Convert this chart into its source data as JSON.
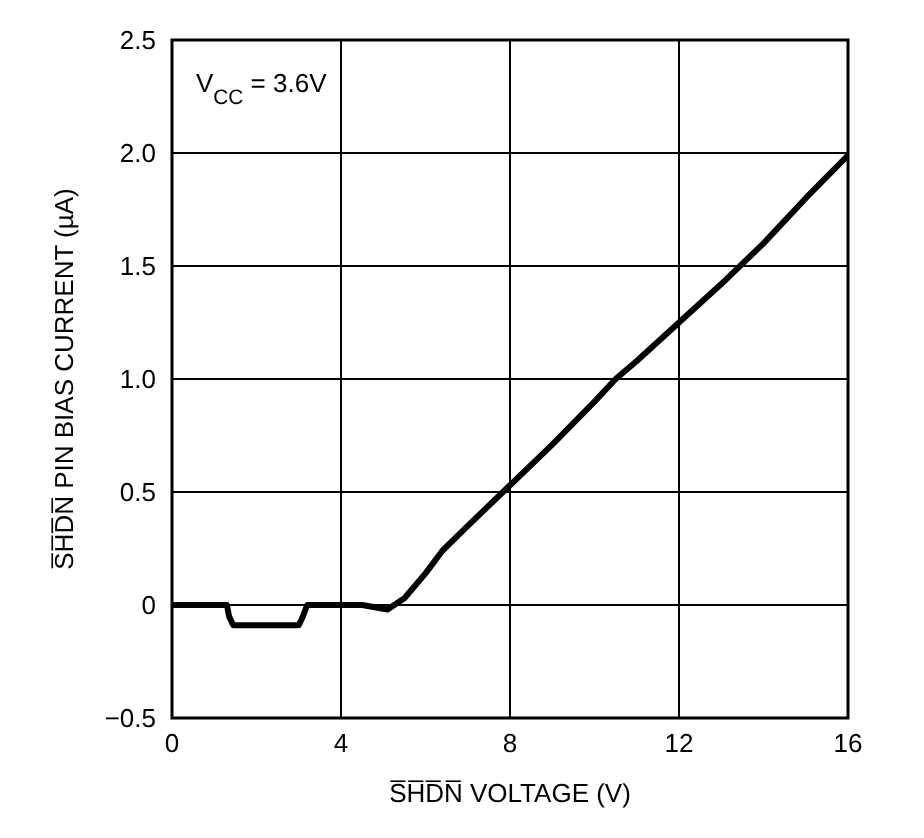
{
  "chart_data": {
    "type": "line",
    "xlabel": "S̅H̅D̅N̅ VOLTAGE (V)",
    "ylabel": "S̅H̅D̅N̅ PIN BIAS CURRENT (µA)",
    "annotations": [
      "V$_{CC}$ = 3.6V"
    ],
    "x": [
      0,
      1.3,
      1.35,
      1.45,
      3.0,
      3.1,
      3.2,
      4.5,
      4.8,
      5.1,
      5.5,
      6.0,
      6.4,
      7.0,
      8.0,
      9.0,
      10.0,
      10.5,
      11.0,
      12.0,
      13.0,
      14.0,
      15.0,
      16.0
    ],
    "series": [
      {
        "color": "#000000",
        "values": [
          0,
          0,
          -0.05,
          -0.09,
          -0.09,
          -0.05,
          0,
          0,
          -0.01,
          -0.02,
          0.03,
          0.14,
          0.24,
          0.35,
          0.53,
          0.71,
          0.9,
          1.0,
          1.08,
          1.25,
          1.42,
          1.6,
          1.8,
          1.99
        ]
      }
    ],
    "xlim": [
      0,
      16
    ],
    "xticks": [
      0,
      4,
      8,
      12,
      16
    ],
    "ylim": [
      -0.5,
      2.5
    ],
    "yticks": [
      {
        "value": -0.5,
        "label": "−0.5"
      },
      0,
      0.5,
      {
        "value": 1,
        "label": "1.0"
      },
      1.5,
      {
        "value": 2,
        "label": "2.0"
      },
      2.5
    ],
    "grid": true,
    "marker": "none",
    "line_style": "solid"
  }
}
